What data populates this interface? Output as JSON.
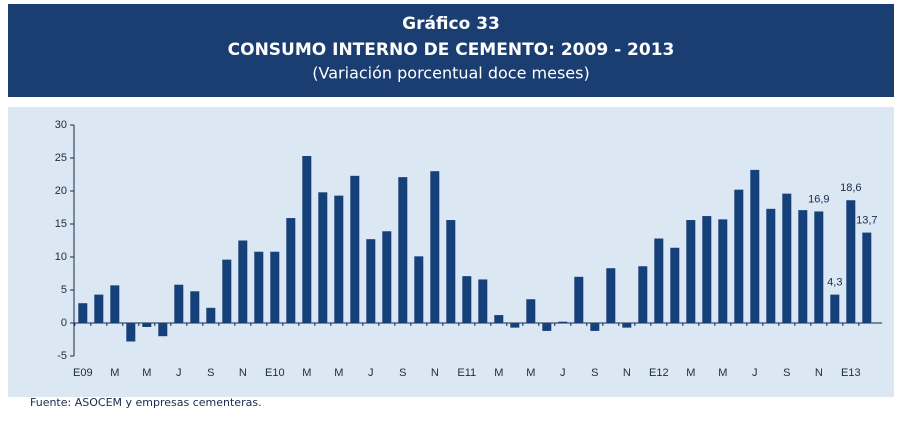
{
  "chart_data": {
    "type": "bar",
    "chart_number": "Gráfico 33",
    "title": "CONSUMO INTERNO DE CEMENTO: 2009 - 2013",
    "subtitle": "(Variación porcentual doce meses)",
    "source": "Fuente: ASOCEM y empresas cementeras.",
    "color": "#15407a",
    "categories": [
      "E09",
      null,
      "M",
      null,
      "M",
      null,
      "J",
      null,
      "S",
      null,
      "N",
      null,
      "E10",
      null,
      "M",
      null,
      "M",
      null,
      "J",
      null,
      "S",
      null,
      "N",
      null,
      "E11",
      null,
      "M",
      null,
      "M",
      null,
      "J",
      null,
      "S",
      null,
      "N",
      null,
      "E12",
      null,
      "M",
      null,
      "M",
      null,
      "J",
      null,
      "S",
      null,
      "N",
      null,
      "E13",
      null
    ],
    "values": [
      3.0,
      4.3,
      5.7,
      -2.8,
      -0.6,
      -2.0,
      5.8,
      4.8,
      2.3,
      9.6,
      12.5,
      10.8,
      10.8,
      15.9,
      25.3,
      19.8,
      19.3,
      22.3,
      12.7,
      13.9,
      22.1,
      10.1,
      23.0,
      15.6,
      7.1,
      6.6,
      1.2,
      -0.7,
      3.6,
      -1.2,
      0.2,
      7.0,
      -1.2,
      8.3,
      -0.7,
      8.6,
      12.8,
      11.4,
      15.6,
      16.2,
      15.7,
      20.2,
      23.2,
      17.3,
      19.6,
      17.1,
      16.9,
      4.3,
      18.6,
      13.7
    ],
    "value_labels": [
      null,
      null,
      null,
      null,
      null,
      null,
      null,
      null,
      null,
      null,
      null,
      null,
      null,
      null,
      null,
      null,
      null,
      null,
      null,
      null,
      null,
      null,
      null,
      null,
      null,
      null,
      null,
      null,
      null,
      null,
      null,
      null,
      null,
      null,
      null,
      null,
      null,
      null,
      null,
      null,
      null,
      null,
      null,
      null,
      null,
      null,
      "16,9",
      "4,3",
      "18,6",
      "13,7"
    ],
    "ylim": [
      -5,
      30
    ],
    "yticks": [
      -5,
      0,
      5,
      10,
      15,
      20,
      25,
      30
    ]
  }
}
